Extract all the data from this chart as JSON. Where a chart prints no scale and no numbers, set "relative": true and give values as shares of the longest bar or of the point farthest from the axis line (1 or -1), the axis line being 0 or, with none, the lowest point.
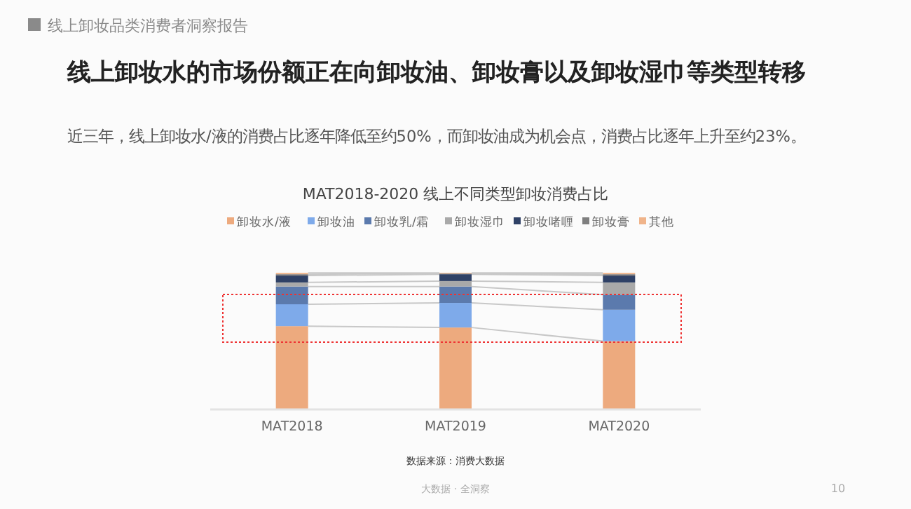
{
  "chart_data": {
    "type": "bar",
    "stacked": true,
    "relative": true,
    "title": "MAT2018-2020 线上不同类型卸妆消费占比",
    "legend": "top",
    "categories": [
      "MAT2018",
      "MAT2019",
      "MAT2020"
    ],
    "series": [
      {
        "name": "卸妆水/液",
        "color": "#edaa7e",
        "values": [
          0.61,
          0.6,
          0.5
        ]
      },
      {
        "name": "卸妆油",
        "color": "#7eaaea",
        "values": [
          0.16,
          0.18,
          0.23
        ]
      },
      {
        "name": "卸妆乳/霜",
        "color": "#5b7aad",
        "values": [
          0.13,
          0.12,
          0.11
        ]
      },
      {
        "name": "卸妆湿巾",
        "color": "#a9a9a9",
        "values": [
          0.03,
          0.04,
          0.09
        ]
      },
      {
        "name": "卸妆啫喱",
        "color": "#2f4166",
        "values": [
          0.05,
          0.05,
          0.05
        ]
      },
      {
        "name": "卸妆膏",
        "color": "#7f7f7f",
        "values": [
          0.01,
          0.005,
          0.01
        ]
      },
      {
        "name": "其他",
        "color": "#f0b48a",
        "values": [
          0.01,
          0.005,
          0.01
        ]
      }
    ],
    "annotations": [
      "线上卸妆品类消费者洞察报告",
      "线上卸妆水的市场份额正在向卸妆油、卸妆膏以及卸妆湿巾等类型转移",
      "近三年，线上卸妆水/液的消费占比逐年降低至约50%，而卸妆油成为机会点，消费占比逐年上升至约23%。",
      "数据来源：消费大数据",
      "大数据 · 全洞察",
      "10"
    ]
  }
}
